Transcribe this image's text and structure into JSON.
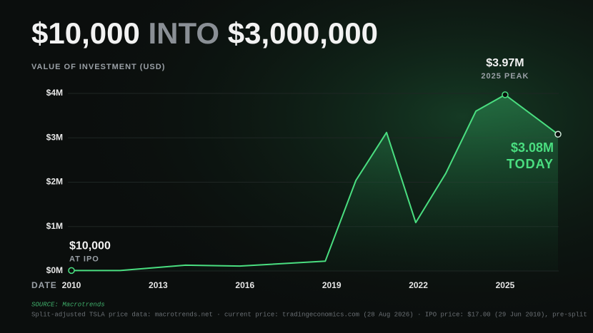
{
  "chart_data": {
    "type": "line",
    "title": [
      "$10,000",
      "INTO",
      "$3,000,000"
    ],
    "y_label": "VALUE OF INVESTMENT (USD)",
    "x_label": "DATE",
    "x": [
      2010,
      2011.68,
      2013.94,
      2015.82,
      2018.78,
      2019.84,
      2020.9,
      2021.91,
      2022.95,
      2023.99,
      2025,
      2026.83
    ],
    "series": [
      {
        "name": "Investment value",
        "color": "#4ade80",
        "values": [
          10000,
          10000,
          130000,
          110000,
          220000,
          2040000,
          3120000,
          1090000,
          2200000,
          3600000,
          3970000,
          3080000
        ]
      }
    ],
    "xlim": [
      2010,
      2026.83
    ],
    "ylim": [
      0,
      4000000
    ],
    "xticks": [
      2010,
      2013,
      2016,
      2019,
      2022,
      2025
    ],
    "yticks": [
      {
        "value": 0,
        "label": "$0M"
      },
      {
        "value": 1000000,
        "label": "$1M"
      },
      {
        "value": 2000000,
        "label": "$2M"
      },
      {
        "value": 3000000,
        "label": "$3M"
      },
      {
        "value": 4000000,
        "label": "$4M"
      }
    ],
    "grid": true,
    "annotations": [
      {
        "index": 0,
        "label": "$10,000",
        "sublabel": "AT IPO"
      },
      {
        "index": 10,
        "label": "$3.97M",
        "sublabel": "2025 PEAK"
      },
      {
        "index": 11,
        "label": "$3.08M",
        "sublabel": "TODAY"
      }
    ],
    "source": "SOURCE: Macrotrends",
    "footnote": "Split-adjusted TSLA price data: macrotrends.net · current price: tradingeconomics.com (28 Aug 2026) · IPO price: $17.00 (29 Jun 2010), pre-split"
  }
}
